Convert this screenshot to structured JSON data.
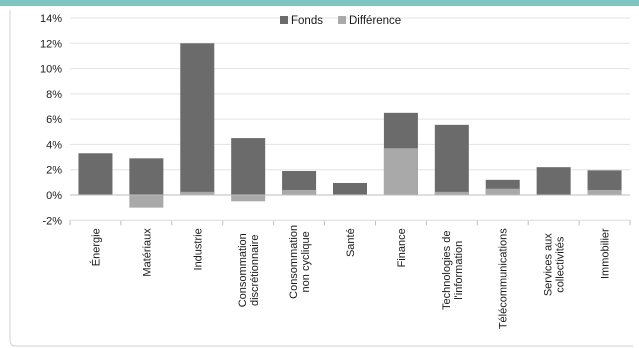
{
  "chart_data": {
    "type": "bar",
    "stacked": true,
    "categories": [
      [
        "Énergie"
      ],
      [
        "Matériaux"
      ],
      [
        "Industrie"
      ],
      [
        "Consommation",
        "discrétionnaire"
      ],
      [
        "Consommation",
        "non cyclique"
      ],
      [
        "Santé"
      ],
      [
        "Finance"
      ],
      [
        "Technologies de",
        "l'information"
      ],
      [
        "Télécommunications"
      ],
      [
        "Services aux",
        "collectivités"
      ],
      [
        "Immobilier"
      ]
    ],
    "series": [
      {
        "name": "Fonds",
        "color": "#6b6b6b",
        "values": [
          3.3,
          2.9,
          12.0,
          4.5,
          1.9,
          0.95,
          6.5,
          5.55,
          1.2,
          2.2,
          1.95
        ]
      },
      {
        "name": "Différence",
        "color": "#a9a9a9",
        "values": [
          0.05,
          -1.0,
          0.25,
          -0.5,
          0.4,
          0.05,
          3.7,
          0.25,
          0.5,
          0.0,
          0.4
        ]
      }
    ],
    "yticks": [
      "-2%",
      "0%",
      "2%",
      "4%",
      "6%",
      "8%",
      "10%",
      "12%",
      "14%"
    ],
    "ylim": [
      -2,
      14
    ],
    "ystep": 2,
    "grid": true,
    "legend_position": "top-center",
    "xlabel": "",
    "ylabel": ""
  }
}
